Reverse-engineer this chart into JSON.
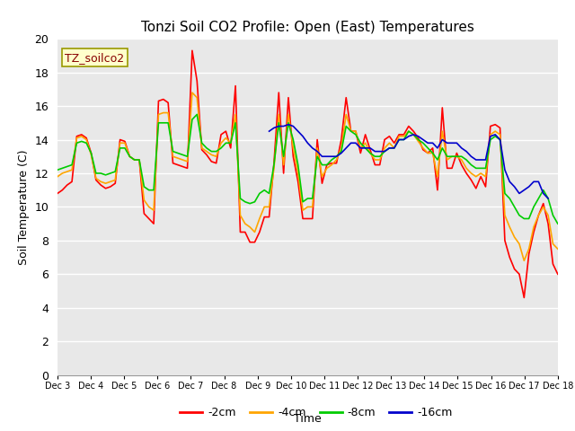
{
  "title": "Tonzi Soil CO2 Profile: Open (East) Temperatures",
  "xlabel": "Time",
  "ylabel": "Soil Temperature (C)",
  "annotation": "TZ_soilco2",
  "ylim": [
    0,
    20
  ],
  "series_colors": [
    "#ff0000",
    "#ffa500",
    "#00cc00",
    "#0000cc"
  ],
  "series_labels": [
    "-2cm",
    "-4cm",
    "-8cm",
    "-16cm"
  ],
  "plot_bg_color": "#e8e8e8",
  "x_tick_labels": [
    "Dec 3",
    "Dec 4",
    "Dec 5",
    "Dec 6",
    "Dec 7",
    "Dec 8",
    "Dec 9",
    "Dec 10",
    "Dec 11",
    "Dec 12",
    "Dec 13",
    "Dec 14",
    "Dec 15",
    "Dec 16",
    "Dec 17",
    "Dec 18"
  ],
  "n2cm": [
    10.8,
    11.0,
    11.3,
    11.5,
    14.2,
    14.3,
    14.1,
    13.2,
    11.6,
    11.3,
    11.1,
    11.2,
    11.4,
    14.0,
    13.9,
    13.0,
    12.8,
    12.8,
    9.6,
    9.3,
    9.0,
    16.3,
    16.4,
    16.2,
    12.6,
    12.5,
    12.4,
    12.3,
    19.3,
    17.5,
    13.4,
    13.1,
    12.7,
    12.6,
    14.3,
    14.5,
    13.5,
    17.2,
    8.5,
    8.5,
    7.9,
    7.9,
    8.5,
    9.4,
    9.4,
    12.6,
    16.8,
    12.0,
    16.5,
    13.0,
    11.5,
    9.3,
    9.3,
    9.3,
    14.0,
    11.4,
    12.5,
    12.6,
    12.6,
    14.0,
    16.5,
    14.5,
    14.5,
    13.2,
    14.3,
    13.4,
    12.5,
    12.5,
    14.0,
    14.2,
    13.8,
    14.3,
    14.3,
    14.8,
    14.5,
    14.1,
    13.4,
    13.2,
    13.5,
    11.0,
    15.9,
    12.3,
    12.3,
    13.2,
    12.5,
    12.0,
    11.6,
    11.1,
    11.8,
    11.2,
    14.8,
    14.9,
    14.7,
    8.0,
    7.0,
    6.3,
    6.0,
    4.6,
    7.2,
    8.5,
    9.5,
    10.2,
    9.0,
    6.6,
    6.0
  ],
  "n4cm": [
    11.8,
    12.0,
    12.1,
    12.2,
    14.1,
    14.2,
    14.0,
    13.1,
    11.7,
    11.5,
    11.4,
    11.5,
    11.6,
    13.8,
    13.8,
    13.0,
    12.8,
    12.8,
    10.4,
    10.0,
    9.8,
    15.5,
    15.6,
    15.6,
    13.0,
    12.9,
    12.8,
    12.7,
    16.8,
    16.5,
    13.5,
    13.3,
    13.1,
    13.0,
    13.8,
    14.1,
    13.8,
    15.5,
    9.5,
    9.0,
    8.8,
    8.5,
    9.3,
    10.0,
    10.0,
    12.3,
    15.5,
    12.5,
    15.5,
    13.5,
    12.0,
    9.8,
    10.0,
    10.0,
    13.5,
    11.8,
    12.3,
    12.5,
    12.8,
    13.5,
    15.5,
    14.5,
    14.5,
    13.5,
    13.8,
    13.2,
    12.8,
    12.8,
    13.5,
    13.8,
    13.5,
    14.2,
    14.2,
    14.5,
    14.3,
    13.9,
    13.5,
    13.2,
    13.2,
    11.8,
    14.5,
    12.8,
    13.0,
    13.0,
    12.8,
    12.3,
    12.0,
    11.8,
    12.0,
    11.8,
    14.3,
    14.5,
    14.3,
    9.5,
    8.8,
    8.2,
    7.8,
    6.8,
    7.5,
    8.8,
    9.5,
    10.0,
    9.5,
    7.8,
    7.5
  ],
  "n8cm": [
    12.2,
    12.3,
    12.4,
    12.5,
    13.8,
    13.9,
    13.8,
    13.2,
    12.0,
    12.0,
    11.9,
    12.0,
    12.1,
    13.5,
    13.5,
    13.0,
    12.8,
    12.8,
    11.2,
    11.0,
    11.0,
    15.0,
    15.0,
    15.0,
    13.3,
    13.2,
    13.1,
    13.0,
    15.2,
    15.5,
    13.8,
    13.5,
    13.3,
    13.3,
    13.5,
    13.8,
    13.8,
    15.0,
    10.5,
    10.3,
    10.2,
    10.3,
    10.8,
    11.0,
    10.8,
    12.5,
    15.0,
    13.0,
    15.0,
    14.0,
    12.5,
    10.3,
    10.5,
    10.5,
    13.0,
    12.5,
    12.5,
    12.8,
    13.0,
    13.3,
    14.8,
    14.5,
    14.3,
    13.8,
    13.5,
    13.2,
    13.0,
    13.0,
    13.3,
    13.5,
    13.5,
    14.0,
    14.0,
    14.5,
    14.3,
    14.0,
    13.8,
    13.5,
    13.2,
    12.8,
    13.5,
    13.0,
    13.0,
    13.0,
    13.0,
    12.8,
    12.5,
    12.3,
    12.3,
    12.3,
    14.0,
    14.2,
    14.0,
    10.8,
    10.5,
    10.0,
    9.5,
    9.3,
    9.3,
    10.0,
    10.5,
    11.0,
    10.5,
    9.5,
    9.0
  ],
  "n16cm": [
    null,
    null,
    null,
    null,
    null,
    null,
    null,
    null,
    null,
    null,
    null,
    null,
    null,
    null,
    null,
    null,
    null,
    null,
    null,
    null,
    null,
    null,
    null,
    null,
    null,
    null,
    null,
    null,
    null,
    null,
    null,
    null,
    null,
    null,
    null,
    null,
    null,
    null,
    null,
    null,
    null,
    null,
    null,
    null,
    14.5,
    14.7,
    14.8,
    14.8,
    14.9,
    14.8,
    14.5,
    14.2,
    13.8,
    13.5,
    13.3,
    13.0,
    13.0,
    13.0,
    13.0,
    13.2,
    13.5,
    13.8,
    13.8,
    13.5,
    13.5,
    13.5,
    13.3,
    13.3,
    13.3,
    13.5,
    13.5,
    14.0,
    14.0,
    14.2,
    14.3,
    14.2,
    14.0,
    13.8,
    13.8,
    13.5,
    14.0,
    13.8,
    13.8,
    13.8,
    13.5,
    13.3,
    13.0,
    12.8,
    12.8,
    12.8,
    14.2,
    14.3,
    14.0,
    12.2,
    11.5,
    11.2,
    10.8,
    11.0,
    11.2,
    11.5,
    11.5,
    10.8,
    10.5
  ]
}
